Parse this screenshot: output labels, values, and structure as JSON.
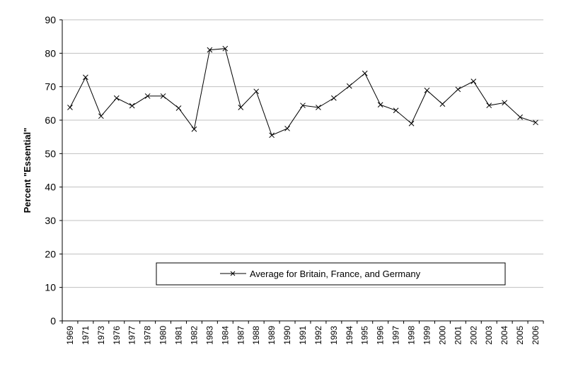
{
  "chart_data": {
    "type": "line",
    "title": "",
    "xlabel": "",
    "ylabel": "Percent \"Essential\"",
    "ylim": [
      0,
      90
    ],
    "yticks": [
      0,
      10,
      20,
      30,
      40,
      50,
      60,
      70,
      80,
      90
    ],
    "grid": "horizontal",
    "legend_placement": "bottom-center",
    "categories": [
      "1969",
      "1971",
      "1973",
      "1976",
      "1977",
      "1978",
      "1980",
      "1981",
      "1982",
      "1983",
      "1984",
      "1987",
      "1988",
      "1989",
      "1990",
      "1991",
      "1992",
      "1993",
      "1994",
      "1995",
      "1996",
      "1997",
      "1998",
      "1999",
      "2000",
      "2001",
      "2002",
      "2003",
      "2004",
      "2005",
      "2006"
    ],
    "series": [
      {
        "name": "Average for Britain, France, and Germany",
        "marker": "x",
        "color": "#000000",
        "values": [
          63.8,
          72.8,
          61.2,
          66.6,
          64.3,
          67.2,
          67.2,
          63.6,
          57.3,
          81.0,
          81.4,
          63.8,
          68.6,
          55.5,
          57.5,
          64.4,
          63.8,
          66.6,
          70.2,
          74.0,
          64.6,
          62.9,
          59.0,
          68.9,
          64.8,
          69.2,
          71.6,
          64.4,
          65.2,
          60.9,
          59.3
        ]
      }
    ]
  }
}
